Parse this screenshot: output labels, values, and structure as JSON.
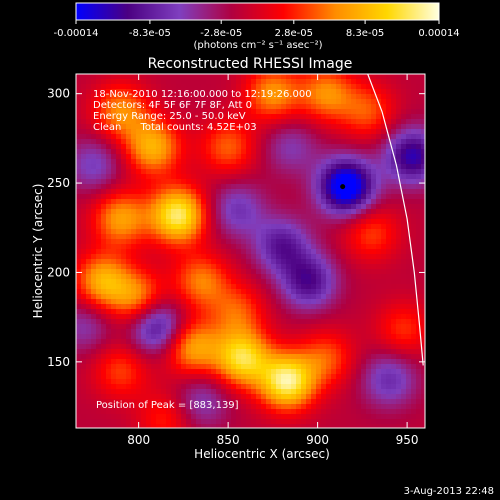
{
  "chart_data": {
    "type": "heatmap",
    "title": "Reconstructed RHESSI Image",
    "xlabel": "Heliocentric X (arcsec)",
    "ylabel": "Heliocentric Y (arcsec)",
    "xlim": [
      765,
      960
    ],
    "ylim": [
      113,
      311
    ],
    "x_ticks": [
      800,
      850,
      900,
      950
    ],
    "y_ticks": [
      150,
      200,
      250,
      300
    ],
    "colorbar": {
      "ticks": [
        "-0.00014",
        "-8.3e-05",
        "-2.8e-05",
        "2.8e-05",
        "8.3e-05",
        "0.00014"
      ],
      "tick_values": [
        -0.00014,
        -8.3e-05,
        -2.8e-05,
        2.8e-05,
        8.3e-05,
        0.00014
      ],
      "range": [
        -0.00014,
        0.00014
      ],
      "unit_label": "(photons cm⁻² s⁻¹ asec⁻²)",
      "colormap": [
        "#0000ff",
        "#4b0082",
        "#7f3fbf",
        "#b00040",
        "#ff0000",
        "#ff8c00",
        "#ffd700",
        "#ffffe0"
      ]
    },
    "header_lines": [
      "18-Nov-2010 12:16:00.000 to 12:19:26.000",
      "Detectors: 4F 5F 6F 7F 8F, Att 0",
      "Energy Range: 25.0 - 50.0 keV",
      "Clean      Total counts: 4.52E+03"
    ],
    "peak_label": "Position of Peak = [883,139]",
    "peak": {
      "x": 883,
      "y": 139
    },
    "sources": [
      {
        "x": 790,
        "y": 290,
        "v": 0.8
      },
      {
        "x": 808,
        "y": 270,
        "v": 1.0
      },
      {
        "x": 822,
        "y": 232,
        "v": 1.45
      },
      {
        "x": 790,
        "y": 230,
        "v": 0.9
      },
      {
        "x": 780,
        "y": 195,
        "v": 1.0
      },
      {
        "x": 800,
        "y": 185,
        "v": 0.85
      },
      {
        "x": 835,
        "y": 195,
        "v": 0.75
      },
      {
        "x": 850,
        "y": 270,
        "v": 0.65
      },
      {
        "x": 875,
        "y": 300,
        "v": 0.85
      },
      {
        "x": 905,
        "y": 300,
        "v": 0.8
      },
      {
        "x": 928,
        "y": 290,
        "v": 0.6
      },
      {
        "x": 883,
        "y": 139,
        "v": 1.5
      },
      {
        "x": 858,
        "y": 152,
        "v": 1.3
      },
      {
        "x": 830,
        "y": 158,
        "v": 0.95
      },
      {
        "x": 790,
        "y": 145,
        "v": 0.55
      },
      {
        "x": 905,
        "y": 152,
        "v": 0.6
      },
      {
        "x": 930,
        "y": 222,
        "v": 0.55
      },
      {
        "x": 948,
        "y": 168,
        "v": 0.5
      },
      {
        "x": 855,
        "y": 178,
        "v": 0.6
      },
      {
        "x": 815,
        "y": 118,
        "v": 0.45
      },
      {
        "x": 916,
        "y": 248,
        "v": -1.6
      },
      {
        "x": 953,
        "y": 265,
        "v": -1.1
      },
      {
        "x": 810,
        "y": 170,
        "v": -1.0
      },
      {
        "x": 880,
        "y": 215,
        "v": -0.8
      },
      {
        "x": 895,
        "y": 195,
        "v": -0.9
      },
      {
        "x": 855,
        "y": 235,
        "v": -0.6
      },
      {
        "x": 885,
        "y": 270,
        "v": -0.45
      },
      {
        "x": 775,
        "y": 260,
        "v": -0.55
      },
      {
        "x": 940,
        "y": 140,
        "v": -0.65
      },
      {
        "x": 835,
        "y": 128,
        "v": -0.5
      },
      {
        "x": 770,
        "y": 170,
        "v": -0.45
      }
    ],
    "limb_curve": [
      [
        928,
        311
      ],
      [
        936,
        290
      ],
      [
        944,
        260
      ],
      [
        950,
        230
      ],
      [
        954,
        200
      ],
      [
        957,
        170
      ],
      [
        959,
        148
      ]
    ],
    "marker": {
      "x": 914,
      "y": 248
    }
  },
  "timestamp": "3-Aug-2013 22:48"
}
